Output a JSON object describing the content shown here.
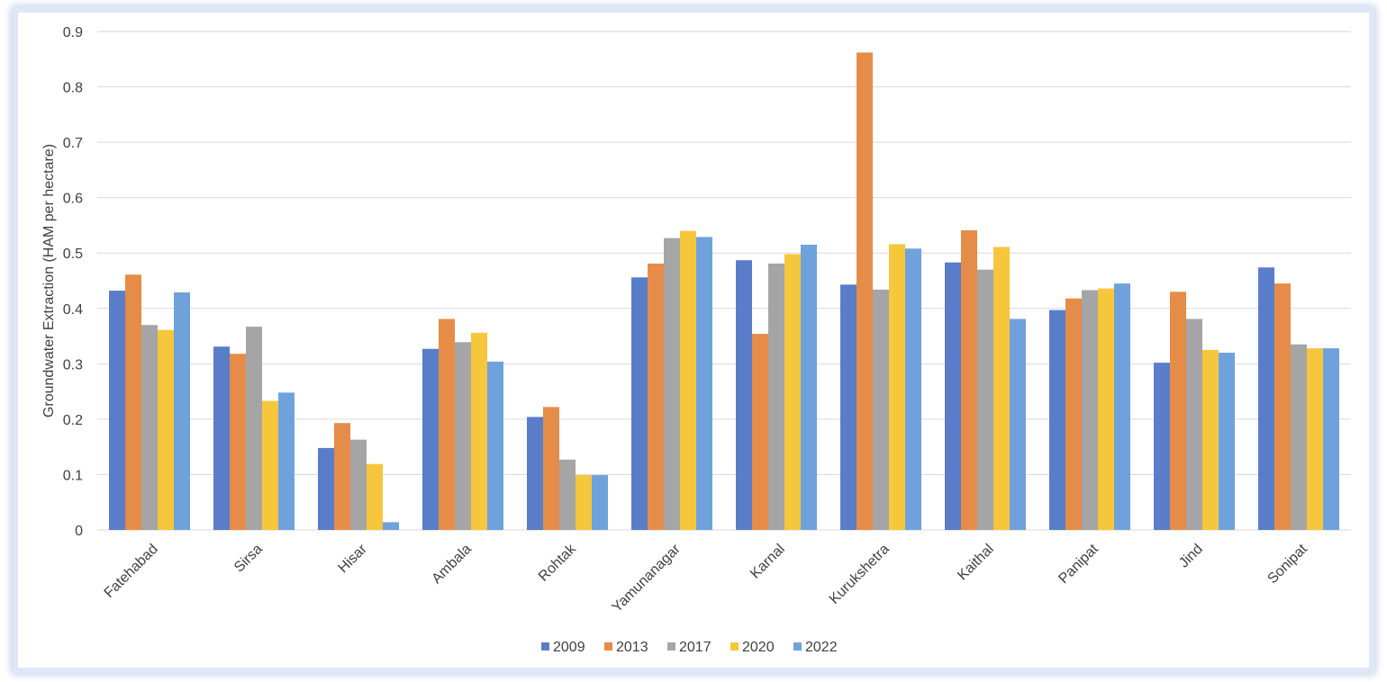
{
  "chart_data": {
    "type": "bar",
    "ylabel": "Groundwater Extraction (HAM per hectare)",
    "ylim": [
      0,
      0.9
    ],
    "yticks": [
      "0",
      "0.1",
      "0.2",
      "0.3",
      "0.4",
      "0.5",
      "0.6",
      "0.7",
      "0.8",
      "0.9"
    ],
    "grid": true,
    "legend_position": "bottom",
    "categories": [
      "Fatehabad",
      "Sirsa",
      "Hisar",
      "Ambala",
      "Rohtak",
      "Yamunanagar",
      "Karnal",
      "Kurukshetra",
      "Kaithal",
      "Panipat",
      "Jind",
      "Sonipat"
    ],
    "series": [
      {
        "name": "2009",
        "color": "#5a7dc9",
        "values": [
          0.432,
          0.331,
          0.148,
          0.327,
          0.204,
          0.456,
          0.487,
          0.443,
          0.483,
          0.397,
          0.302,
          0.474
        ]
      },
      {
        "name": "2013",
        "color": "#e58c48",
        "values": [
          0.461,
          0.318,
          0.193,
          0.381,
          0.222,
          0.481,
          0.354,
          0.862,
          0.541,
          0.418,
          0.43,
          0.445
        ]
      },
      {
        "name": "2017",
        "color": "#a5a5a5",
        "values": [
          0.37,
          0.367,
          0.163,
          0.339,
          0.127,
          0.527,
          0.481,
          0.434,
          0.47,
          0.433,
          0.381,
          0.335
        ]
      },
      {
        "name": "2020",
        "color": "#f6c63c",
        "values": [
          0.361,
          0.233,
          0.119,
          0.356,
          0.099,
          0.54,
          0.498,
          0.516,
          0.511,
          0.436,
          0.325,
          0.328
        ]
      },
      {
        "name": "2022",
        "color": "#6fa2dc",
        "values": [
          0.429,
          0.248,
          0.014,
          0.304,
          0.099,
          0.529,
          0.515,
          0.508,
          0.381,
          0.445,
          0.32,
          0.328
        ]
      }
    ]
  }
}
